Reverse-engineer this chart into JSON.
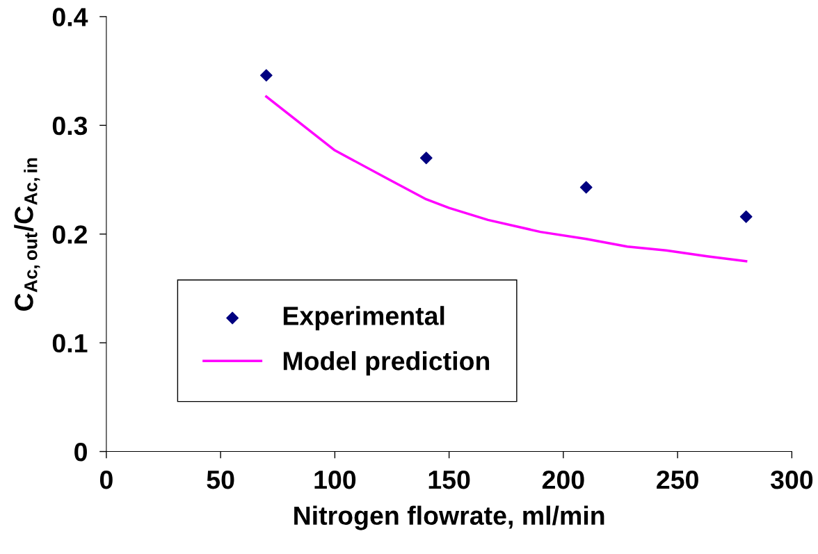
{
  "chart_data": {
    "type": "scatter",
    "xlabel": "Nitrogen flowrate, ml/min",
    "ylabel": "C$_{Ac,out}$/C$_{Ac,in}$",
    "xlim": [
      0,
      300
    ],
    "xticks": [
      0,
      50,
      100,
      150,
      200,
      250,
      300
    ],
    "ylim": [
      0,
      0.4
    ],
    "yticks": [
      0,
      0.1,
      0.2,
      0.3,
      0.4
    ],
    "grid": false,
    "legend": "bottom left",
    "series": [
      {
        "name": "Experimental",
        "marker": "diamond",
        "color": "#000080",
        "x": [
          70,
          140,
          210,
          280
        ],
        "values": [
          0.346,
          0.27,
          0.243,
          0.216
        ]
      },
      {
        "name": "Model prediction",
        "type": "line",
        "marker": "none",
        "line_style": "solid",
        "color": "#ff00ff",
        "x": [
          70,
          100,
          123,
          140,
          150,
          167,
          190,
          210,
          228,
          245,
          263,
          280
        ],
        "values": [
          0.3265,
          0.277,
          0.251,
          0.232,
          0.224,
          0.213,
          0.202,
          0.1955,
          0.1885,
          0.185,
          0.1795,
          0.175
        ]
      }
    ]
  }
}
